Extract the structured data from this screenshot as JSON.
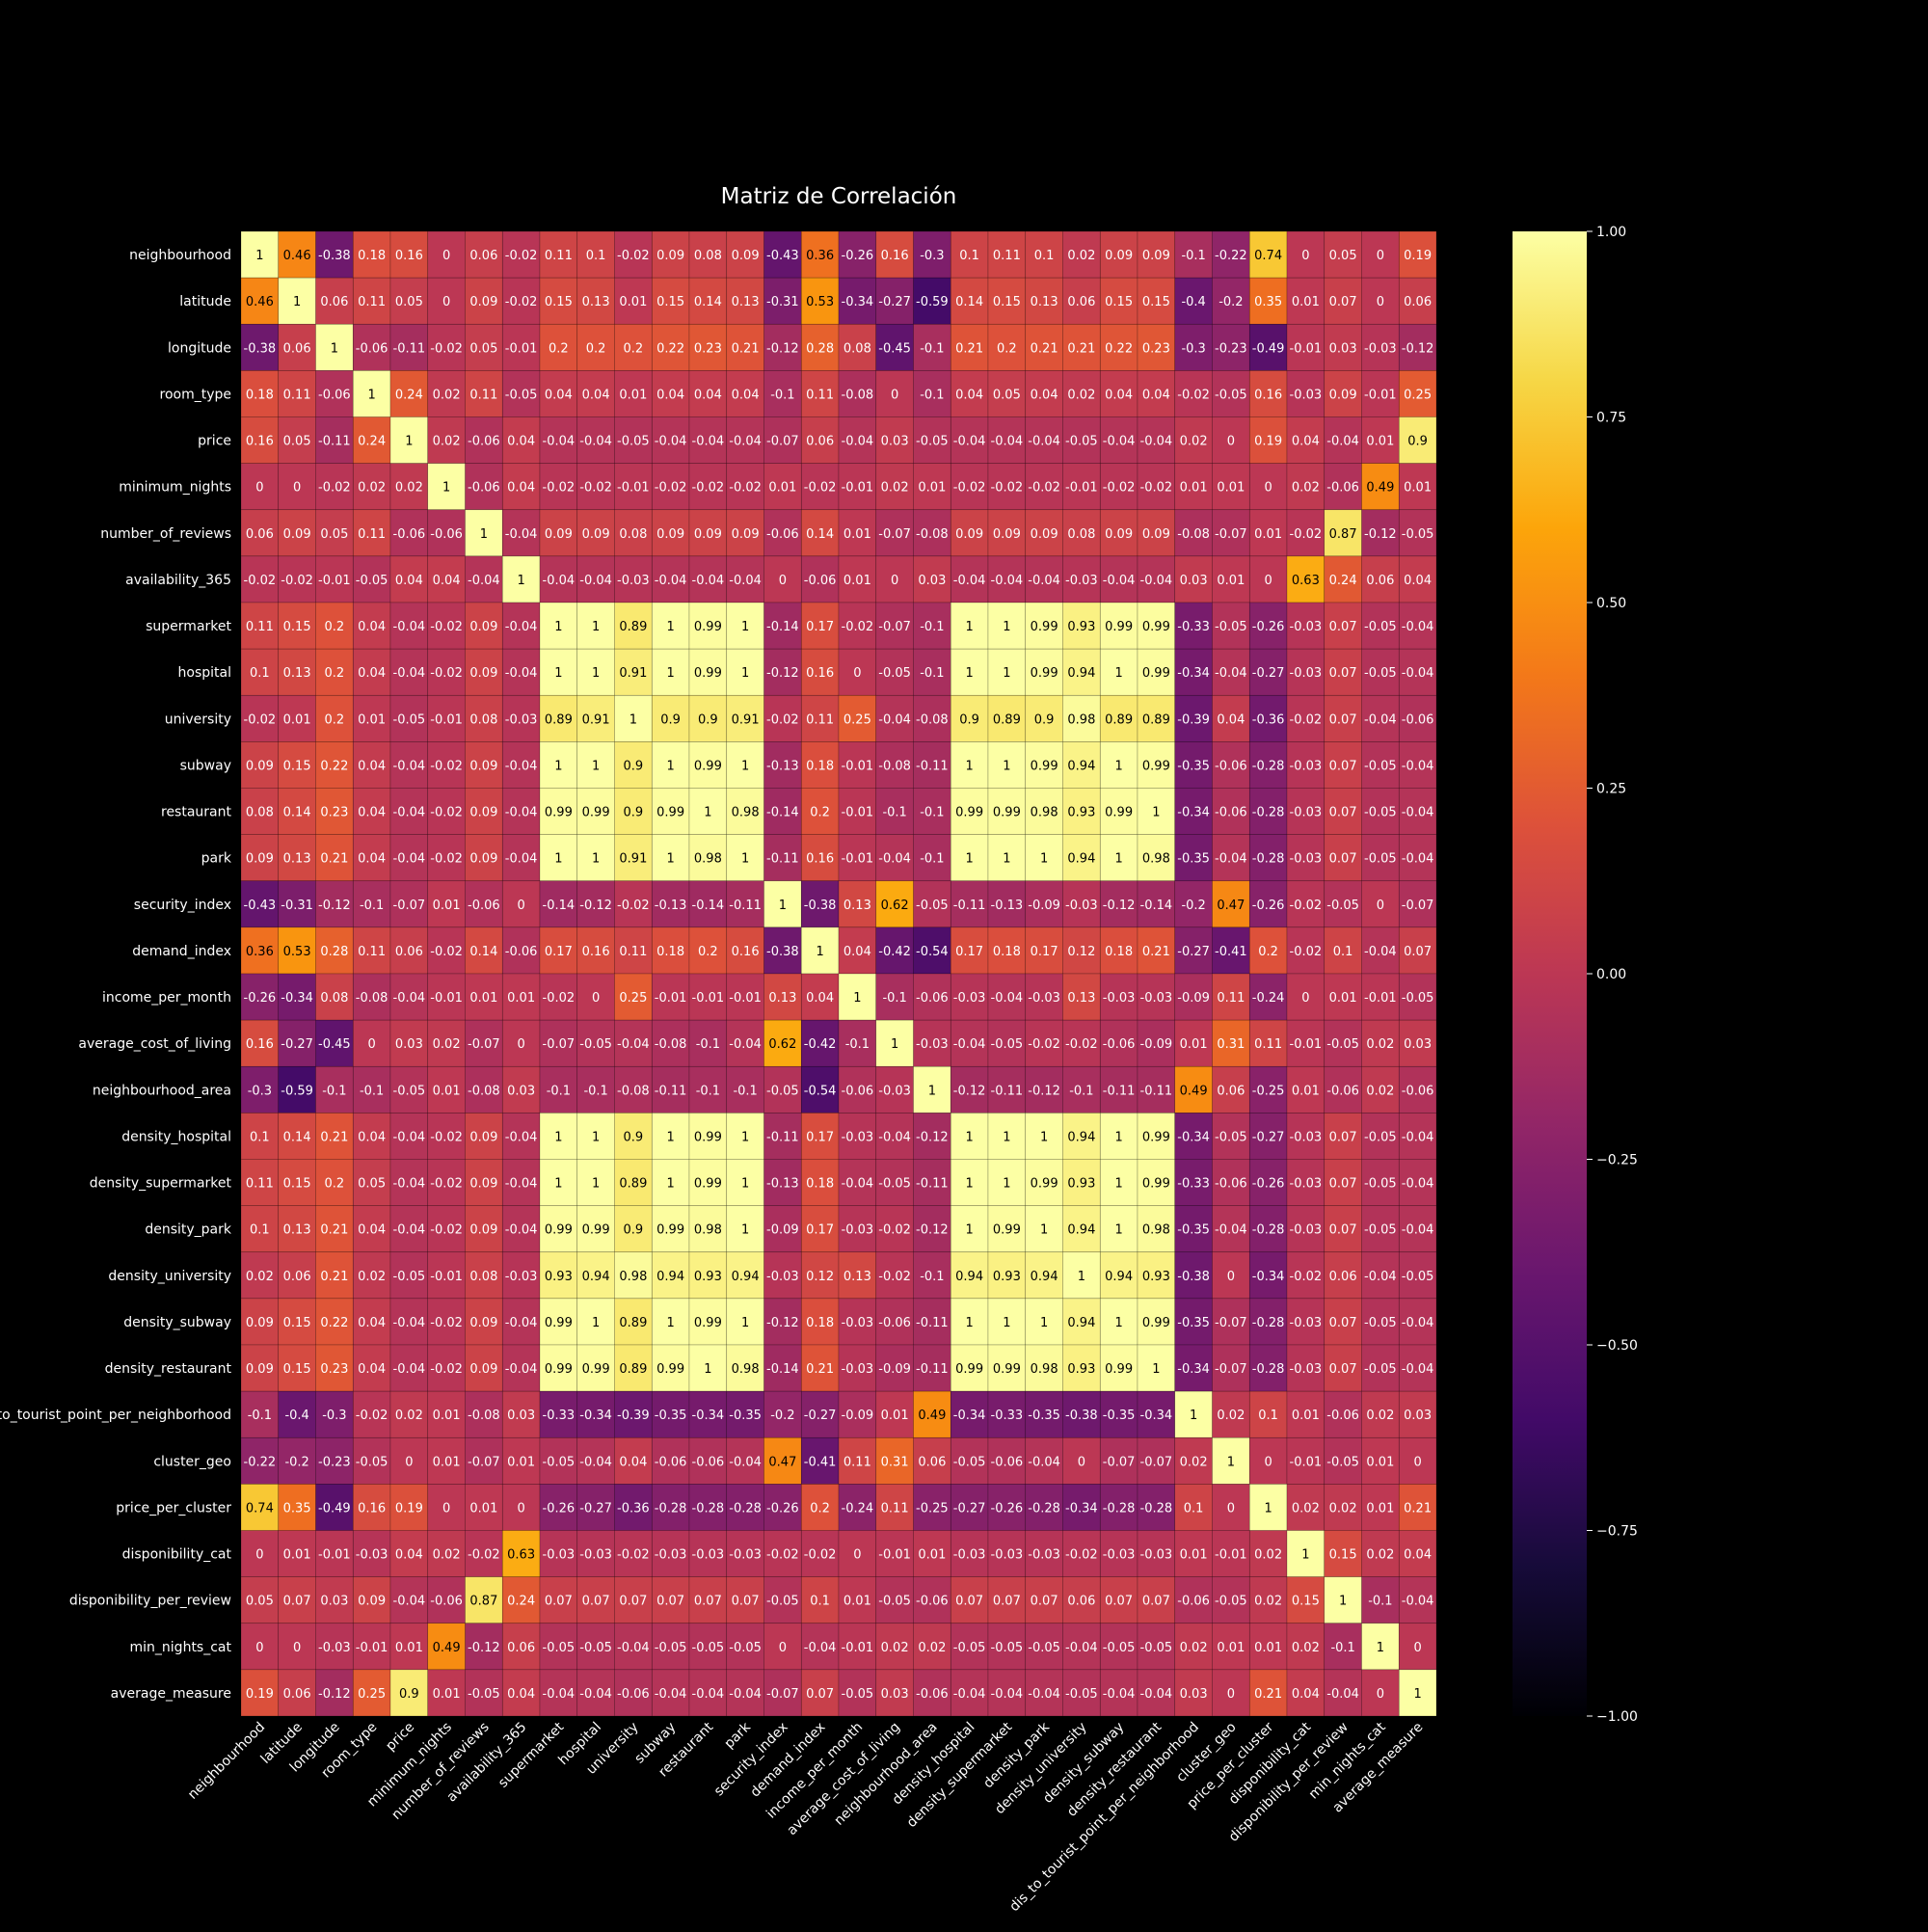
{
  "chart_data": {
    "type": "heatmap",
    "title": "Matriz de Correlación",
    "variables": [
      "neighbourhood",
      "latitude",
      "longitude",
      "room_type",
      "price",
      "minimum_nights",
      "number_of_reviews",
      "availability_365",
      "supermarket",
      "hospital",
      "university",
      "subway",
      "restaurant",
      "park",
      "security_index",
      "demand_index",
      "income_per_month",
      "average_cost_of_living",
      "neighbourhood_area",
      "density_hospital",
      "density_supermarket",
      "density_park",
      "density_university",
      "density_subway",
      "density_restaurant",
      "dis_to_tourist_point_per_neighborhood",
      "cluster_geo",
      "price_per_cluster",
      "disponibility_cat",
      "disponibility_per_review",
      "min_nights_cat",
      "average_measure"
    ],
    "row_labels": [
      "neighbourhood",
      "latitude",
      "longitude",
      "room_type",
      "price",
      "minimum_nights",
      "number_of_reviews",
      "availability_365",
      "supermarket",
      "hospital",
      "university",
      "subway",
      "restaurant",
      "park",
      "security_index",
      "demand_index",
      "income_per_month",
      "average_cost_of_living",
      "neighbourhood_area",
      "density_hospital",
      "density_supermarket",
      "density_park",
      "density_university",
      "density_subway",
      "density_restaurant",
      "to_tourist_point_per_neighborhood",
      "cluster_geo",
      "price_per_cluster",
      "disponibility_cat",
      "disponibility_per_review",
      "min_nights_cat",
      "average_measure"
    ],
    "values": [
      [
        1,
        0.46,
        -0.38,
        0.18,
        0.16,
        0,
        0.06,
        -0.02,
        0.11,
        0.1,
        -0.02,
        0.09,
        0.08,
        0.09,
        -0.43,
        0.36,
        -0.26,
        0.16,
        -0.3,
        0.1,
        0.11,
        0.1,
        0.02,
        0.09,
        0.09,
        -0.1,
        -0.22,
        0.74,
        0,
        0.05,
        0,
        0.19
      ],
      [
        0.46,
        1,
        0.06,
        0.11,
        0.05,
        0,
        0.09,
        -0.02,
        0.15,
        0.13,
        0.01,
        0.15,
        0.14,
        0.13,
        -0.31,
        0.53,
        -0.34,
        -0.27,
        -0.59,
        0.14,
        0.15,
        0.13,
        0.06,
        0.15,
        0.15,
        -0.4,
        -0.2,
        0.35,
        0.01,
        0.07,
        0,
        0.06
      ],
      [
        -0.38,
        0.06,
        1,
        -0.06,
        -0.11,
        -0.02,
        0.05,
        -0.01,
        0.2,
        0.2,
        0.2,
        0.22,
        0.23,
        0.21,
        -0.12,
        0.28,
        0.08,
        -0.45,
        -0.1,
        0.21,
        0.2,
        0.21,
        0.21,
        0.22,
        0.23,
        -0.3,
        -0.23,
        -0.49,
        -0.01,
        0.03,
        -0.03,
        -0.12
      ],
      [
        0.18,
        0.11,
        -0.06,
        1,
        0.24,
        0.02,
        0.11,
        -0.05,
        0.04,
        0.04,
        0.01,
        0.04,
        0.04,
        0.04,
        -0.1,
        0.11,
        -0.08,
        0,
        -0.1,
        0.04,
        0.05,
        0.04,
        0.02,
        0.04,
        0.04,
        -0.02,
        -0.05,
        0.16,
        -0.03,
        0.09,
        -0.01,
        0.25
      ],
      [
        0.16,
        0.05,
        -0.11,
        0.24,
        1,
        0.02,
        -0.06,
        0.04,
        -0.04,
        -0.04,
        -0.05,
        -0.04,
        -0.04,
        -0.04,
        -0.07,
        0.06,
        -0.04,
        0.03,
        -0.05,
        -0.04,
        -0.04,
        -0.04,
        -0.05,
        -0.04,
        -0.04,
        0.02,
        0,
        0.19,
        0.04,
        -0.04,
        0.01,
        0.9
      ],
      [
        0,
        0,
        -0.02,
        0.02,
        0.02,
        1,
        -0.06,
        0.04,
        -0.02,
        -0.02,
        -0.01,
        -0.02,
        -0.02,
        -0.02,
        0.01,
        -0.02,
        -0.01,
        0.02,
        0.01,
        -0.02,
        -0.02,
        -0.02,
        -0.01,
        -0.02,
        -0.02,
        0.01,
        0.01,
        0,
        0.02,
        -0.06,
        0.49,
        0.01
      ],
      [
        0.06,
        0.09,
        0.05,
        0.11,
        -0.06,
        -0.06,
        1,
        -0.04,
        0.09,
        0.09,
        0.08,
        0.09,
        0.09,
        0.09,
        -0.06,
        0.14,
        0.01,
        -0.07,
        -0.08,
        0.09,
        0.09,
        0.09,
        0.08,
        0.09,
        0.09,
        -0.08,
        -0.07,
        0.01,
        -0.02,
        0.87,
        -0.12,
        -0.05
      ],
      [
        -0.02,
        -0.02,
        -0.01,
        -0.05,
        0.04,
        0.04,
        -0.04,
        1,
        -0.04,
        -0.04,
        -0.03,
        -0.04,
        -0.04,
        -0.04,
        0,
        -0.06,
        0.01,
        0,
        0.03,
        -0.04,
        -0.04,
        -0.04,
        -0.03,
        -0.04,
        -0.04,
        0.03,
        0.01,
        0,
        0.63,
        0.24,
        0.06,
        0.04
      ],
      [
        0.11,
        0.15,
        0.2,
        0.04,
        -0.04,
        -0.02,
        0.09,
        -0.04,
        1,
        1,
        0.89,
        1,
        0.99,
        1,
        -0.14,
        0.17,
        -0.02,
        -0.07,
        -0.1,
        1,
        1,
        0.99,
        0.93,
        0.99,
        0.99,
        -0.33,
        -0.05,
        -0.26,
        -0.03,
        0.07,
        -0.05,
        -0.04
      ],
      [
        0.1,
        0.13,
        0.2,
        0.04,
        -0.04,
        -0.02,
        0.09,
        -0.04,
        1,
        1,
        0.91,
        1,
        0.99,
        1,
        -0.12,
        0.16,
        0,
        -0.05,
        -0.1,
        1,
        1,
        0.99,
        0.94,
        1,
        0.99,
        -0.34,
        -0.04,
        -0.27,
        -0.03,
        0.07,
        -0.05,
        -0.04
      ],
      [
        -0.02,
        0.01,
        0.2,
        0.01,
        -0.05,
        -0.01,
        0.08,
        -0.03,
        0.89,
        0.91,
        1,
        0.9,
        0.9,
        0.91,
        -0.02,
        0.11,
        0.25,
        -0.04,
        -0.08,
        0.9,
        0.89,
        0.9,
        0.98,
        0.89,
        0.89,
        -0.39,
        0.04,
        -0.36,
        -0.02,
        0.07,
        -0.04,
        -0.06
      ],
      [
        0.09,
        0.15,
        0.22,
        0.04,
        -0.04,
        -0.02,
        0.09,
        -0.04,
        1,
        1,
        0.9,
        1,
        0.99,
        1,
        -0.13,
        0.18,
        -0.01,
        -0.08,
        -0.11,
        1,
        1,
        0.99,
        0.94,
        1,
        0.99,
        -0.35,
        -0.06,
        -0.28,
        -0.03,
        0.07,
        -0.05,
        -0.04
      ],
      [
        0.08,
        0.14,
        0.23,
        0.04,
        -0.04,
        -0.02,
        0.09,
        -0.04,
        0.99,
        0.99,
        0.9,
        0.99,
        1,
        0.98,
        -0.14,
        0.2,
        -0.01,
        -0.1,
        -0.1,
        0.99,
        0.99,
        0.98,
        0.93,
        0.99,
        1,
        -0.34,
        -0.06,
        -0.28,
        -0.03,
        0.07,
        -0.05,
        -0.04
      ],
      [
        0.09,
        0.13,
        0.21,
        0.04,
        -0.04,
        -0.02,
        0.09,
        -0.04,
        1,
        1,
        0.91,
        1,
        0.98,
        1,
        -0.11,
        0.16,
        -0.01,
        -0.04,
        -0.1,
        1,
        1,
        1,
        0.94,
        1,
        0.98,
        -0.35,
        -0.04,
        -0.28,
        -0.03,
        0.07,
        -0.05,
        -0.04
      ],
      [
        -0.43,
        -0.31,
        -0.12,
        -0.1,
        -0.07,
        0.01,
        -0.06,
        0,
        -0.14,
        -0.12,
        -0.02,
        -0.13,
        -0.14,
        -0.11,
        1,
        -0.38,
        0.13,
        0.62,
        -0.05,
        -0.11,
        -0.13,
        -0.09,
        -0.03,
        -0.12,
        -0.14,
        -0.2,
        0.47,
        -0.26,
        -0.02,
        -0.05,
        0,
        -0.07
      ],
      [
        0.36,
        0.53,
        0.28,
        0.11,
        0.06,
        -0.02,
        0.14,
        -0.06,
        0.17,
        0.16,
        0.11,
        0.18,
        0.2,
        0.16,
        -0.38,
        1,
        0.04,
        -0.42,
        -0.54,
        0.17,
        0.18,
        0.17,
        0.12,
        0.18,
        0.21,
        -0.27,
        -0.41,
        0.2,
        -0.02,
        0.1,
        -0.04,
        0.07
      ],
      [
        -0.26,
        -0.34,
        0.08,
        -0.08,
        -0.04,
        -0.01,
        0.01,
        0.01,
        -0.02,
        0,
        0.25,
        -0.01,
        -0.01,
        -0.01,
        0.13,
        0.04,
        1,
        -0.1,
        -0.06,
        -0.03,
        -0.04,
        -0.03,
        0.13,
        -0.03,
        -0.03,
        -0.09,
        0.11,
        -0.24,
        0,
        0.01,
        -0.01,
        -0.05
      ],
      [
        0.16,
        -0.27,
        -0.45,
        0,
        0.03,
        0.02,
        -0.07,
        0,
        -0.07,
        -0.05,
        -0.04,
        -0.08,
        -0.1,
        -0.04,
        0.62,
        -0.42,
        -0.1,
        1,
        -0.03,
        -0.04,
        -0.05,
        -0.02,
        -0.02,
        -0.06,
        -0.09,
        0.01,
        0.31,
        0.11,
        -0.01,
        -0.05,
        0.02,
        0.03
      ],
      [
        -0.3,
        -0.59,
        -0.1,
        -0.1,
        -0.05,
        0.01,
        -0.08,
        0.03,
        -0.1,
        -0.1,
        -0.08,
        -0.11,
        -0.1,
        -0.1,
        -0.05,
        -0.54,
        -0.06,
        -0.03,
        1,
        -0.12,
        -0.11,
        -0.12,
        -0.1,
        -0.11,
        -0.11,
        0.49,
        0.06,
        -0.25,
        0.01,
        -0.06,
        0.02,
        -0.06
      ],
      [
        0.1,
        0.14,
        0.21,
        0.04,
        -0.04,
        -0.02,
        0.09,
        -0.04,
        1,
        1,
        0.9,
        1,
        0.99,
        1,
        -0.11,
        0.17,
        -0.03,
        -0.04,
        -0.12,
        1,
        1,
        1,
        0.94,
        1,
        0.99,
        -0.34,
        -0.05,
        -0.27,
        -0.03,
        0.07,
        -0.05,
        -0.04
      ],
      [
        0.11,
        0.15,
        0.2,
        0.05,
        -0.04,
        -0.02,
        0.09,
        -0.04,
        1,
        1,
        0.89,
        1,
        0.99,
        1,
        -0.13,
        0.18,
        -0.04,
        -0.05,
        -0.11,
        1,
        1,
        0.99,
        0.93,
        1,
        0.99,
        -0.33,
        -0.06,
        -0.26,
        -0.03,
        0.07,
        -0.05,
        -0.04
      ],
      [
        0.1,
        0.13,
        0.21,
        0.04,
        -0.04,
        -0.02,
        0.09,
        -0.04,
        0.99,
        0.99,
        0.9,
        0.99,
        0.98,
        1,
        -0.09,
        0.17,
        -0.03,
        -0.02,
        -0.12,
        1,
        0.99,
        1,
        0.94,
        1,
        0.98,
        -0.35,
        -0.04,
        -0.28,
        -0.03,
        0.07,
        -0.05,
        -0.04
      ],
      [
        0.02,
        0.06,
        0.21,
        0.02,
        -0.05,
        -0.01,
        0.08,
        -0.03,
        0.93,
        0.94,
        0.98,
        0.94,
        0.93,
        0.94,
        -0.03,
        0.12,
        0.13,
        -0.02,
        -0.1,
        0.94,
        0.93,
        0.94,
        1,
        0.94,
        0.93,
        -0.38,
        0,
        -0.34,
        -0.02,
        0.06,
        -0.04,
        -0.05
      ],
      [
        0.09,
        0.15,
        0.22,
        0.04,
        -0.04,
        -0.02,
        0.09,
        -0.04,
        0.99,
        1,
        0.89,
        1,
        0.99,
        1,
        -0.12,
        0.18,
        -0.03,
        -0.06,
        -0.11,
        1,
        1,
        1,
        0.94,
        1,
        0.99,
        -0.35,
        -0.07,
        -0.28,
        -0.03,
        0.07,
        -0.05,
        -0.04
      ],
      [
        0.09,
        0.15,
        0.23,
        0.04,
        -0.04,
        -0.02,
        0.09,
        -0.04,
        0.99,
        0.99,
        0.89,
        0.99,
        1,
        0.98,
        -0.14,
        0.21,
        -0.03,
        -0.09,
        -0.11,
        0.99,
        0.99,
        0.98,
        0.93,
        0.99,
        1,
        -0.34,
        -0.07,
        -0.28,
        -0.03,
        0.07,
        -0.05,
        -0.04
      ],
      [
        -0.1,
        -0.4,
        -0.3,
        -0.02,
        0.02,
        0.01,
        -0.08,
        0.03,
        -0.33,
        -0.34,
        -0.39,
        -0.35,
        -0.34,
        -0.35,
        -0.2,
        -0.27,
        -0.09,
        0.01,
        0.49,
        -0.34,
        -0.33,
        -0.35,
        -0.38,
        -0.35,
        -0.34,
        1,
        0.02,
        0.1,
        0.01,
        -0.06,
        0.02,
        0.03
      ],
      [
        -0.22,
        -0.2,
        -0.23,
        -0.05,
        0,
        0.01,
        -0.07,
        0.01,
        -0.05,
        -0.04,
        0.04,
        -0.06,
        -0.06,
        -0.04,
        0.47,
        -0.41,
        0.11,
        0.31,
        0.06,
        -0.05,
        -0.06,
        -0.04,
        0,
        -0.07,
        -0.07,
        0.02,
        1,
        0,
        -0.01,
        -0.05,
        0.01,
        0
      ],
      [
        0.74,
        0.35,
        -0.49,
        0.16,
        0.19,
        0,
        0.01,
        0,
        -0.26,
        -0.27,
        -0.36,
        -0.28,
        -0.28,
        -0.28,
        -0.26,
        0.2,
        -0.24,
        0.11,
        -0.25,
        -0.27,
        -0.26,
        -0.28,
        -0.34,
        -0.28,
        -0.28,
        0.1,
        0,
        1,
        0.02,
        0.02,
        0.01,
        0.21
      ],
      [
        0,
        0.01,
        -0.01,
        -0.03,
        0.04,
        0.02,
        -0.02,
        0.63,
        -0.03,
        -0.03,
        -0.02,
        -0.03,
        -0.03,
        -0.03,
        -0.02,
        -0.02,
        0,
        -0.01,
        0.01,
        -0.03,
        -0.03,
        -0.03,
        -0.02,
        -0.03,
        -0.03,
        0.01,
        -0.01,
        0.02,
        1,
        0.15,
        0.02,
        0.04
      ],
      [
        0.05,
        0.07,
        0.03,
        0.09,
        -0.04,
        -0.06,
        0.87,
        0.24,
        0.07,
        0.07,
        0.07,
        0.07,
        0.07,
        0.07,
        -0.05,
        0.1,
        0.01,
        -0.05,
        -0.06,
        0.07,
        0.07,
        0.07,
        0.06,
        0.07,
        0.07,
        -0.06,
        -0.05,
        0.02,
        0.15,
        1,
        -0.1,
        -0.04
      ],
      [
        0,
        0,
        -0.03,
        -0.01,
        0.01,
        0.49,
        -0.12,
        0.06,
        -0.05,
        -0.05,
        -0.04,
        -0.05,
        -0.05,
        -0.05,
        0,
        -0.04,
        -0.01,
        0.02,
        0.02,
        -0.05,
        -0.05,
        -0.05,
        -0.04,
        -0.05,
        -0.05,
        0.02,
        0.01,
        0.01,
        0.02,
        -0.1,
        1,
        0
      ],
      [
        0.19,
        0.06,
        -0.12,
        0.25,
        0.9,
        0.01,
        -0.05,
        0.04,
        -0.04,
        -0.04,
        -0.06,
        -0.04,
        -0.04,
        -0.04,
        -0.07,
        0.07,
        -0.05,
        0.03,
        -0.06,
        -0.04,
        -0.04,
        -0.04,
        -0.05,
        -0.04,
        -0.04,
        0.03,
        0,
        0.21,
        0.04,
        -0.04,
        0,
        1
      ]
    ],
    "vmin": -1,
    "vmax": 1,
    "colormap": "inferno",
    "colorbar_ticks": [
      1,
      0.75,
      0.5,
      0.25,
      0,
      -0.25,
      -0.5,
      -0.75,
      -1
    ],
    "colorbar_tick_labels": [
      "1.00",
      "0.75",
      "0.50",
      "0.25",
      "0.00",
      "−0.25",
      "−0.50",
      "−0.75",
      "−1.00"
    ],
    "background": "#000000",
    "text_color": "#ffffff",
    "legend_position": "right"
  }
}
